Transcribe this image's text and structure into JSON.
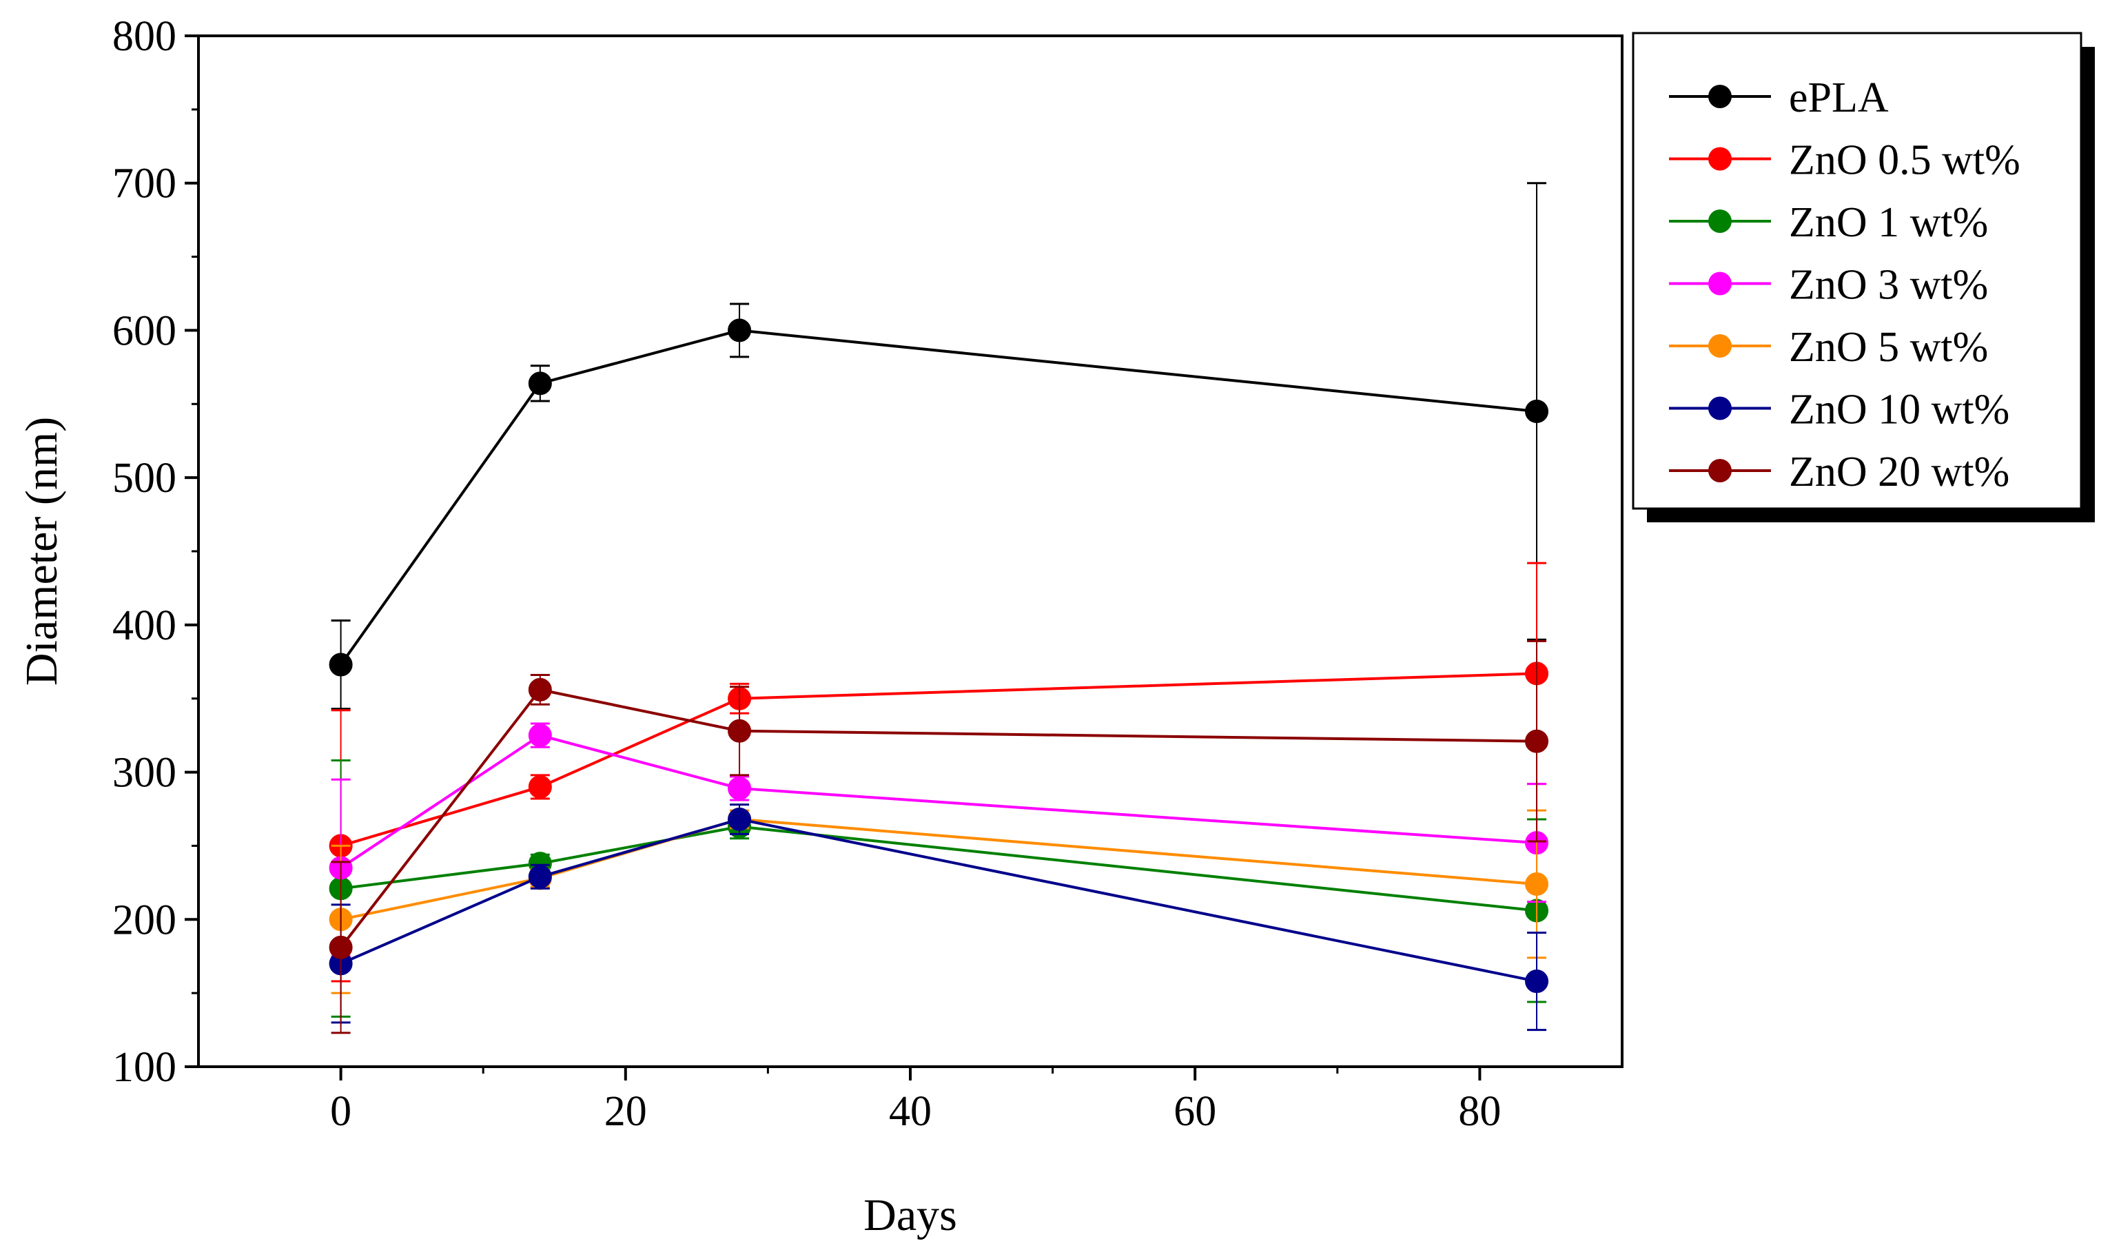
{
  "chart_data": {
    "type": "line",
    "title": "",
    "xlabel": "Days",
    "ylabel": "Diameter (nm)",
    "xlim": [
      -10,
      90
    ],
    "ylim": [
      100,
      800
    ],
    "xticks": [
      0,
      20,
      40,
      60,
      80
    ],
    "yticks": [
      100,
      200,
      300,
      400,
      500,
      600,
      700,
      800
    ],
    "xtick_labels": [
      "0",
      "20",
      "40",
      "60",
      "80"
    ],
    "ytick_labels": [
      "100",
      "200",
      "300",
      "400",
      "500",
      "600",
      "700",
      "800"
    ],
    "grid": false,
    "legend_position": "top-right outside",
    "x": [
      0,
      14,
      28,
      84
    ],
    "series": [
      {
        "name": "ePLA",
        "color": "#000000",
        "values": [
          373,
          564,
          600,
          545
        ],
        "errors": [
          30,
          12,
          18,
          155
        ]
      },
      {
        "name": "ZnO 0.5 wt%",
        "color": "#ff0000",
        "values": [
          250,
          290,
          350,
          367
        ],
        "errors": [
          92,
          8,
          10,
          75
        ]
      },
      {
        "name": "ZnO 1 wt%",
        "color": "#008000",
        "values": [
          221,
          238,
          263,
          206
        ],
        "errors": [
          87,
          6,
          8,
          62
        ]
      },
      {
        "name": "ZnO 3 wt%",
        "color": "#ff00ff",
        "values": [
          235,
          325,
          289,
          252
        ],
        "errors": [
          60,
          8,
          8,
          40
        ]
      },
      {
        "name": "ZnO 5 wt%",
        "color": "#ff8c00",
        "values": [
          200,
          228,
          268,
          224
        ],
        "errors": [
          50,
          6,
          6,
          50
        ]
      },
      {
        "name": "ZnO 10 wt%",
        "color": "#00008b",
        "values": [
          170,
          229,
          268,
          158
        ],
        "errors": [
          40,
          8,
          10,
          33
        ]
      },
      {
        "name": "ZnO 20 wt%",
        "color": "#8b0000",
        "values": [
          181,
          356,
          328,
          321
        ],
        "errors": [
          58,
          10,
          30,
          68
        ]
      }
    ]
  }
}
